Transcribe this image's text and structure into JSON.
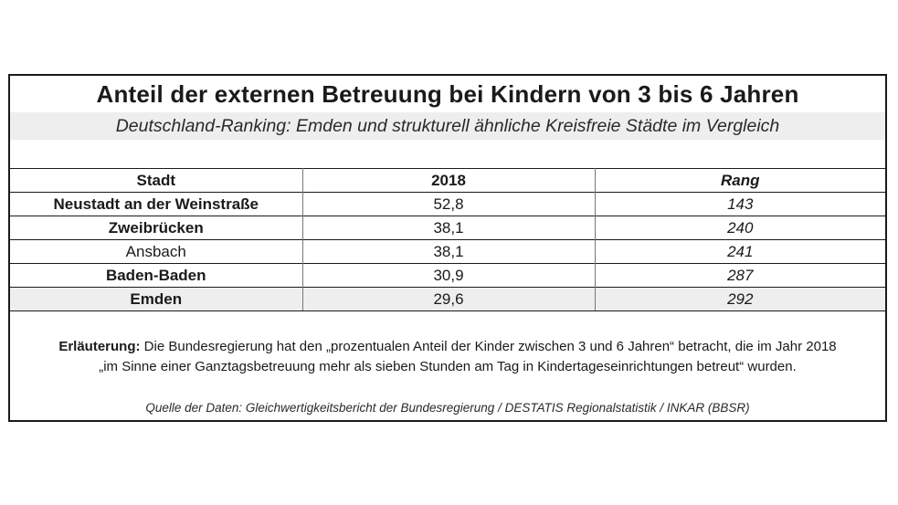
{
  "title": "Anteil der externen Betreuung bei Kindern von 3 bis 6 Jahren",
  "subtitle": "Deutschland-Ranking: Emden und strukturell ähnliche Kreisfreie Städte im Vergleich",
  "table": {
    "headers": [
      "Stadt",
      "2018",
      "Rang"
    ],
    "rows": [
      {
        "city": "Neustadt an der Weinstraße",
        "value": "52,8",
        "rank": "143"
      },
      {
        "city": "Zweibrücken",
        "value": "38,1",
        "rank": "240"
      },
      {
        "city": "Ansbach",
        "value": "38,1",
        "rank": "241"
      },
      {
        "city": "Baden-Baden",
        "value": "30,9",
        "rank": "287"
      },
      {
        "city": "Emden",
        "value": "29,6",
        "rank": "292"
      }
    ]
  },
  "note": {
    "label": "Erläuterung:",
    "line1": " Die Bundesregierung hat den „prozentualen Anteil der Kinder zwischen 3 und 6 Jahren“ betracht, die im Jahr 2018",
    "line2": "„im Sinne einer Ganztagsbetreuung mehr als sieben Stunden am Tag in Kindertageseinrichtungen betreut“ wurden."
  },
  "source": "Quelle der Daten: Gleichwertigkeitsbericht der Bundesregierung / DESTATIS Regionalstatistik / INKAR (BBSR)"
}
